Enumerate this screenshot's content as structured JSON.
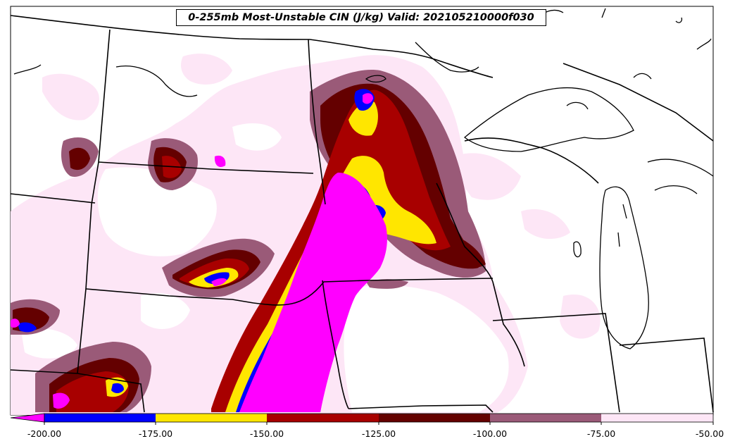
{
  "title": "0-255mb Most-Unstable CIN (J/kg) Valid: 202105210000f030",
  "colorbar": {
    "ticks": [
      "-200.00",
      "-175.00",
      "-150.00",
      "-125.00",
      "-100.00",
      "-75.00",
      "-50.00"
    ],
    "colors": [
      "#ff00ff",
      "#0000ff",
      "#ffe600",
      "#a80000",
      "#640000",
      "#9a5a78",
      "#fde6f6"
    ]
  },
  "fill_colors": {
    "lt_minus_200": "#ff00ff",
    "minus_200_175": "#0000ff",
    "minus_175_150": "#ffe600",
    "minus_150_125": "#a80000",
    "minus_125_100": "#640000",
    "minus_100_75": "#9a5a78",
    "minus_75_50": "#fde6f6"
  }
}
